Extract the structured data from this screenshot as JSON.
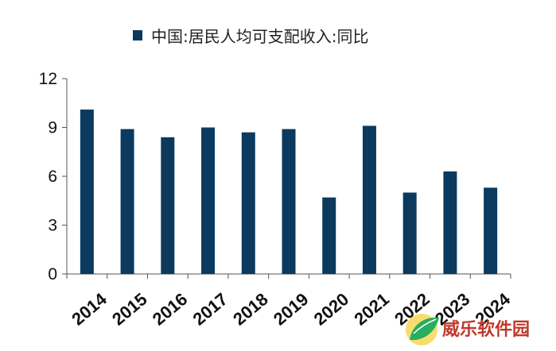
{
  "chart_data": {
    "type": "bar",
    "title": "",
    "xlabel": "",
    "ylabel": "",
    "categories": [
      "2014",
      "2015",
      "2016",
      "2017",
      "2018",
      "2019",
      "2020",
      "2021",
      "2022",
      "2023",
      "2024"
    ],
    "series": [
      {
        "name": "中国:居民人均可支配收入:同比",
        "values": [
          10.1,
          8.9,
          8.4,
          9.0,
          8.7,
          8.9,
          4.7,
          9.1,
          5.0,
          6.3,
          5.3
        ],
        "color": "#0b3a5e"
      }
    ],
    "ylim": [
      0,
      12
    ],
    "yticks": [
      "0",
      "3",
      "6",
      "9",
      "12"
    ],
    "grid": false,
    "legend_position": "top"
  },
  "watermark": {
    "text": "威乐软件园",
    "color": "#c0392b"
  }
}
